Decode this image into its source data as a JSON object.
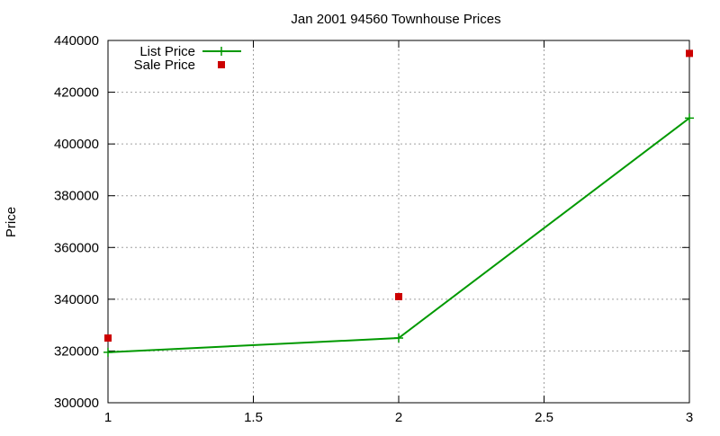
{
  "chart_data": {
    "type": "line",
    "title": "Jan 2001 94560 Townhouse Prices",
    "xlabel": "",
    "ylabel": "Price",
    "xlim": [
      1,
      3
    ],
    "ylim": [
      300000,
      440000
    ],
    "xticks": [
      1,
      1.5,
      2,
      2.5,
      3
    ],
    "xtick_labels": [
      "1",
      "1.5",
      "2",
      "2.5",
      "3"
    ],
    "yticks": [
      300000,
      320000,
      340000,
      360000,
      380000,
      400000,
      420000,
      440000
    ],
    "ytick_labels": [
      "300000",
      "320000",
      "340000",
      "360000",
      "380000",
      "400000",
      "420000",
      "440000"
    ],
    "grid": true,
    "legend_position": "top-left",
    "series": [
      {
        "name": "List Price",
        "style": "line+plus",
        "color": "#009900",
        "x": [
          1,
          2,
          3
        ],
        "y": [
          319500,
          325000,
          410000
        ]
      },
      {
        "name": "Sale Price",
        "style": "square-points",
        "color": "#cc0000",
        "x": [
          1,
          2,
          3
        ],
        "y": [
          325000,
          341000,
          435000
        ]
      }
    ]
  }
}
